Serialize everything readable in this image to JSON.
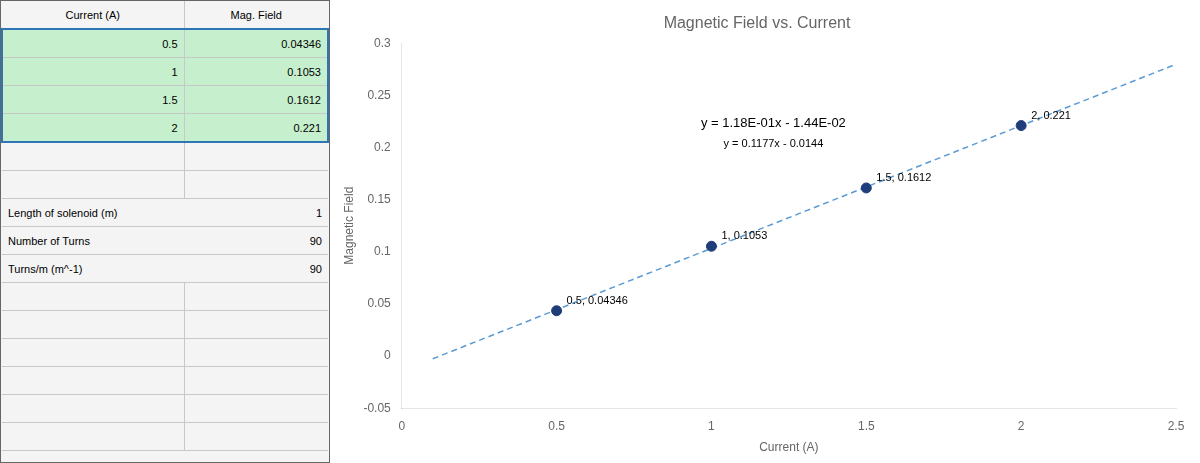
{
  "chart_data": {
    "type": "scatter",
    "title": "Magnetic Field vs. Current",
    "xlabel": "Current (A)",
    "ylabel": "Magnetic Field",
    "series": [
      {
        "type": "scatter",
        "x": [
          0.5,
          1,
          1.5,
          2
        ],
        "values": [
          0.04346,
          0.1053,
          0.1612,
          0.221
        ],
        "color": "#1f3d7a",
        "marker": "circle",
        "point_labels": [
          "0.5, 0.04346",
          "1, 0.1053",
          "1.5, 0.1612",
          "2, 0.221"
        ]
      },
      {
        "type": "line",
        "x": [
          0.1,
          2.5
        ],
        "values": [
          -0.00263,
          0.27985
        ],
        "color": "#5b9bd5",
        "line_style": "dashed"
      }
    ],
    "annotations": [
      "y = 1.18E-01x - 1.44E-02",
      "y = 0.1177x - 0.0144"
    ],
    "xlim": [
      0,
      2.5
    ],
    "ylim": [
      -0.05,
      0.3
    ],
    "xticks": [
      0,
      0.5,
      1,
      1.5,
      2,
      2.5
    ],
    "yticks": [
      -0.05,
      0,
      0.05,
      0.1,
      0.15,
      0.2,
      0.25,
      0.3
    ],
    "grid": false,
    "table": {
      "headers": [
        "Current (A)",
        "Mag. Field"
      ],
      "rows": [
        [
          "0.5",
          "0.04346"
        ],
        [
          "1",
          "0.1053"
        ],
        [
          "1.5",
          "0.1612"
        ],
        [
          "2",
          "0.221"
        ]
      ],
      "info": [
        [
          "Length of solenoid (m)",
          "1"
        ],
        [
          "Number of Turns",
          "90"
        ],
        [
          "Turns/m (m^-1)",
          "90"
        ]
      ],
      "color": "#c6efce",
      "border_color": "#2e75b6"
    }
  }
}
